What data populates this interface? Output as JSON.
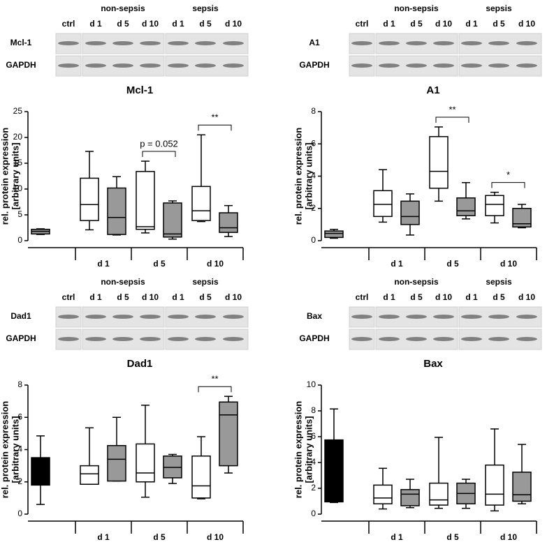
{
  "chart_data": [
    {
      "type": "box",
      "title": "Mcl-1",
      "ylabel": [
        "rel. protein expression",
        "[arbitrary units]"
      ],
      "blot": {
        "header": [
          "non-sepsis",
          "sepsis"
        ],
        "lanes": [
          "ctrl",
          "d 1",
          "d 5",
          "d 10",
          "d 1",
          "d 5",
          "d 10"
        ],
        "rows": [
          "Mcl-1",
          "GAPDH"
        ]
      },
      "groups": [
        "d 1",
        "d 5",
        "d 10"
      ],
      "ylim": [
        0,
        25
      ],
      "yticks": [
        0,
        5,
        10,
        15,
        20,
        25
      ],
      "boxes": [
        {
          "color": "#999999",
          "stats": [
            1.2,
            1.3,
            1.8,
            2.2,
            2.3
          ]
        },
        {
          "color": "#ffffff",
          "stats": [
            2.1,
            3.9,
            7.0,
            12.1,
            17.3
          ]
        },
        {
          "color": "#999999",
          "stats": [
            1.1,
            1.2,
            4.5,
            10.2,
            12.4
          ]
        },
        {
          "color": "#ffffff",
          "stats": [
            1.5,
            2.2,
            2.7,
            13.4,
            15.4
          ]
        },
        {
          "color": "#999999",
          "stats": [
            0.3,
            0.7,
            1.3,
            7.3,
            7.7
          ]
        },
        {
          "color": "#ffffff",
          "stats": [
            3.7,
            3.9,
            5.8,
            10.5,
            20.5
          ]
        },
        {
          "color": "#999999",
          "stats": [
            0.8,
            1.6,
            2.5,
            5.4,
            6.8
          ]
        }
      ],
      "annotations": [
        {
          "text": "p = 0.052",
          "pair": [
            3,
            4
          ]
        },
        {
          "text": "**",
          "pair": [
            5,
            6
          ]
        }
      ]
    },
    {
      "type": "box",
      "title": "A1",
      "ylabel": [
        "rel. protein expression",
        "[arbitrary units]"
      ],
      "blot": {
        "header": [
          "non-sepsis",
          "sepsis"
        ],
        "lanes": [
          "ctrl",
          "d 1",
          "d 5",
          "d 10",
          "d 1",
          "d 5",
          "d 10"
        ],
        "rows": [
          "A1",
          "GAPDH"
        ]
      },
      "groups": [
        "d 1",
        "d 5",
        "d 10"
      ],
      "ylim": [
        0,
        8
      ],
      "yticks": [
        0,
        2,
        4,
        6,
        8
      ],
      "boxes": [
        {
          "color": "#999999",
          "stats": [
            0.15,
            0.2,
            0.45,
            0.6,
            0.7
          ]
        },
        {
          "color": "#ffffff",
          "stats": [
            1.15,
            1.5,
            2.25,
            3.1,
            4.4
          ]
        },
        {
          "color": "#999999",
          "stats": [
            0.35,
            1.0,
            1.5,
            2.45,
            2.9
          ]
        },
        {
          "color": "#ffffff",
          "stats": [
            2.45,
            3.25,
            4.3,
            6.45,
            7.05
          ]
        },
        {
          "color": "#999999",
          "stats": [
            1.35,
            1.55,
            1.85,
            2.65,
            3.6
          ]
        },
        {
          "color": "#ffffff",
          "stats": [
            1.1,
            1.55,
            2.25,
            2.8,
            3.0
          ]
        },
        {
          "color": "#999999",
          "stats": [
            0.8,
            0.85,
            1.05,
            2.0,
            2.25
          ]
        }
      ],
      "annotations": [
        {
          "text": "**",
          "pair": [
            3,
            4
          ]
        },
        {
          "text": "*",
          "pair": [
            5,
            6
          ]
        }
      ]
    },
    {
      "type": "box",
      "title": "Dad1",
      "ylabel": [
        "rel. protein expression",
        "[arbitrary units]"
      ],
      "blot": {
        "header": [
          "non-sepsis",
          "sepsis"
        ],
        "lanes": [
          "ctrl",
          "d 1",
          "d 5",
          "d 10",
          "d 1",
          "d 5",
          "d 10"
        ],
        "rows": [
          "Dad1",
          "GAPDH"
        ]
      },
      "groups": [
        "d 1",
        "d 5",
        "d 10"
      ],
      "ylim": [
        0,
        8
      ],
      "yticks": [
        0,
        2,
        4,
        6,
        8
      ],
      "boxes": [
        {
          "color": "#000000",
          "stats": [
            0.6,
            1.8,
            2.5,
            3.5,
            4.85
          ]
        },
        {
          "color": "#ffffff",
          "stats": [
            1.85,
            1.85,
            2.5,
            3.0,
            5.35
          ]
        },
        {
          "color": "#999999",
          "stats": [
            2.05,
            2.05,
            3.4,
            4.25,
            6.0
          ]
        },
        {
          "color": "#ffffff",
          "stats": [
            1.05,
            2.0,
            2.55,
            4.35,
            6.75
          ]
        },
        {
          "color": "#999999",
          "stats": [
            1.9,
            2.25,
            2.9,
            3.6,
            3.7
          ]
        },
        {
          "color": "#ffffff",
          "stats": [
            0.95,
            1.0,
            1.75,
            3.6,
            4.8
          ]
        },
        {
          "color": "#999999",
          "stats": [
            2.55,
            3.0,
            6.15,
            6.95,
            7.3
          ]
        }
      ],
      "annotations": [
        {
          "text": "**",
          "pair": [
            5,
            6
          ]
        }
      ]
    },
    {
      "type": "box",
      "title": "Bax",
      "ylabel": [
        "rel. protein expression",
        "[arbitrary units]"
      ],
      "blot": {
        "header": [
          "non-sepsis",
          "sepsis"
        ],
        "lanes": [
          "ctrl",
          "d 1",
          "d 5",
          "d 10",
          "d 1",
          "d 5",
          "d 10"
        ],
        "rows": [
          "Bax",
          "GAPDH"
        ]
      },
      "groups": [
        "d 1",
        "d 5",
        "d 10"
      ],
      "ylim": [
        0,
        10
      ],
      "yticks": [
        0,
        2,
        4,
        6,
        8,
        10
      ],
      "boxes": [
        {
          "color": "#000000",
          "stats": [
            0.9,
            0.95,
            1.0,
            5.75,
            8.15
          ]
        },
        {
          "color": "#ffffff",
          "stats": [
            0.4,
            0.8,
            1.25,
            2.25,
            3.55
          ]
        },
        {
          "color": "#999999",
          "stats": [
            0.5,
            0.65,
            1.55,
            1.9,
            2.7
          ]
        },
        {
          "color": "#ffffff",
          "stats": [
            0.45,
            0.7,
            1.1,
            2.4,
            5.95
          ]
        },
        {
          "color": "#999999",
          "stats": [
            0.45,
            0.8,
            1.6,
            2.4,
            2.7
          ]
        },
        {
          "color": "#ffffff",
          "stats": [
            0.25,
            0.7,
            1.55,
            3.8,
            6.6
          ]
        },
        {
          "color": "#999999",
          "stats": [
            0.8,
            1.0,
            1.5,
            3.25,
            5.4
          ]
        }
      ],
      "annotations": []
    }
  ]
}
